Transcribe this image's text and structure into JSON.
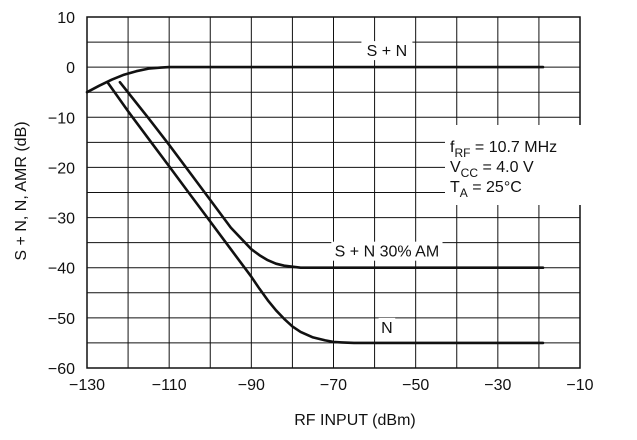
{
  "chart_data": {
    "type": "line",
    "xlabel": "RF INPUT (dBm)",
    "ylabel": "S + N, N, AMR (dB)",
    "xlim": [
      -130,
      -10
    ],
    "ylim": [
      -60,
      10
    ],
    "x_ticks": [
      -130,
      -110,
      -90,
      -70,
      -50,
      -30,
      -10
    ],
    "x_tick_labels": [
      "−130",
      "−110",
      "−90",
      "−70",
      "−50",
      "−30",
      "−10"
    ],
    "y_ticks": [
      10,
      0,
      -10,
      -20,
      -30,
      -40,
      -50,
      -60
    ],
    "y_tick_labels": [
      "10",
      "0",
      "−10",
      "−20",
      "−30",
      "−40",
      "−50",
      "−60"
    ],
    "grid": true,
    "series": [
      {
        "name": "S + N",
        "x": [
          -130,
          -127,
          -124,
          -121,
          -118,
          -115,
          -112,
          -110,
          -108,
          -105,
          -100,
          -90,
          -80,
          -70,
          -60,
          -50,
          -40,
          -30,
          -19
        ],
        "y": [
          -5,
          -3.7,
          -2.5,
          -1.5,
          -0.8,
          -0.3,
          -0.1,
          0,
          0,
          0,
          0,
          0,
          0,
          0,
          0,
          0,
          0,
          0,
          0
        ]
      },
      {
        "name": "S + N 30% AM",
        "x": [
          -122,
          -115,
          -110,
          -105,
          -100,
          -95,
          -90,
          -88,
          -86,
          -84,
          -82,
          -80,
          -78,
          -75,
          -70,
          -60,
          -50,
          -40,
          -30,
          -19
        ],
        "y": [
          -3,
          -10.2,
          -15.5,
          -21,
          -26.5,
          -32,
          -36.3,
          -37.5,
          -38.5,
          -39.2,
          -39.6,
          -39.8,
          -40,
          -40,
          -40,
          -40,
          -40,
          -40,
          -40,
          -40
        ]
      },
      {
        "name": "N",
        "x": [
          -125,
          -120,
          -115,
          -110,
          -105,
          -100,
          -95,
          -90,
          -88,
          -86,
          -84,
          -82,
          -80,
          -78,
          -75,
          -72,
          -70,
          -68,
          -65,
          -60,
          -50,
          -40,
          -30,
          -19
        ],
        "y": [
          -3,
          -8.8,
          -14.3,
          -19.8,
          -25.3,
          -30.8,
          -36.3,
          -41.8,
          -44.2,
          -46.5,
          -48.5,
          -50.2,
          -51.7,
          -52.8,
          -53.9,
          -54.5,
          -54.8,
          -54.9,
          -55,
          -55,
          -55,
          -55,
          -55,
          -55
        ]
      }
    ],
    "series_labels": [
      {
        "text": "S + N",
        "x": -57,
        "y": 2.2
      },
      {
        "text": "S + N 30% AM",
        "x": -57,
        "y": -37.8
      },
      {
        "text": "N",
        "x": -57,
        "y": -53
      }
    ],
    "annotations": {
      "line1_main": "f",
      "line1_sub": "RF",
      "line1_rest": " = 10.7 MHz",
      "line2_main": "V",
      "line2_sub": "CC",
      "line2_rest": " = 4.0 V",
      "line3_main": "T",
      "line3_sub": "A",
      "line3_rest": " = 25°C"
    }
  }
}
